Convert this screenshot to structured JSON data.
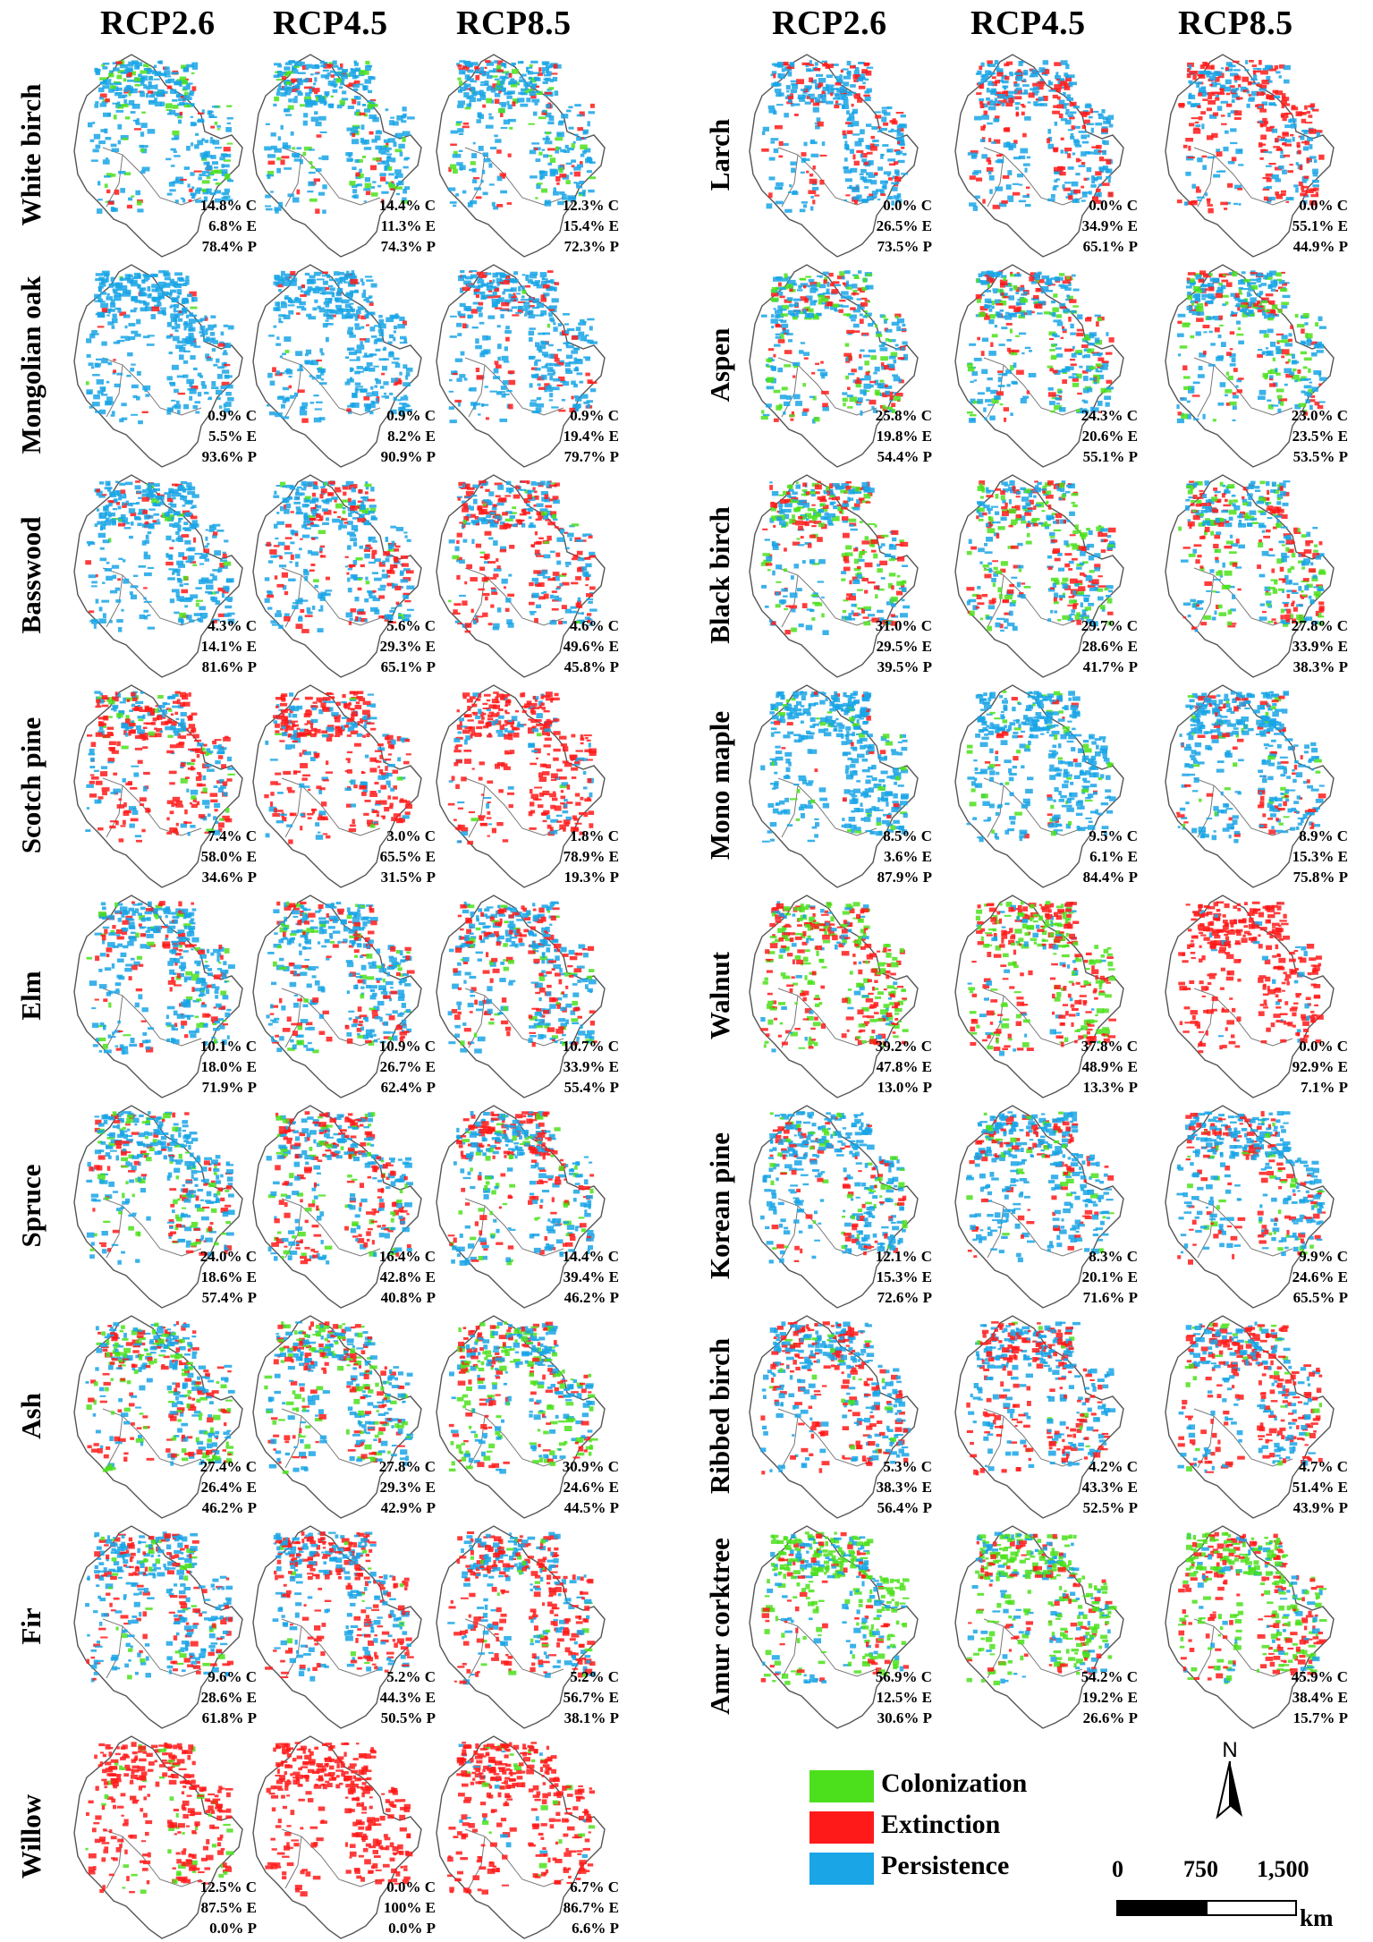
{
  "scenarios": [
    "RCP2.6",
    "RCP4.5",
    "RCP8.5"
  ],
  "stat_suffixes": {
    "colonization": "C",
    "extinction": "E",
    "persistence": "P"
  },
  "colors": {
    "colonization": "#4ce01c",
    "extinction": "#ff1a1a",
    "persistence": "#19a5e6",
    "outline": "#555555"
  },
  "left_species": [
    {
      "name": "White birch",
      "stats": [
        [
          "14.8%",
          "6.8%",
          "78.4%"
        ],
        [
          "14.4%",
          "11.3%",
          "74.3%"
        ],
        [
          "12.3%",
          "15.4%",
          "72.3%"
        ]
      ]
    },
    {
      "name": "Mongolian oak",
      "stats": [
        [
          "0.9%",
          "5.5%",
          "93.6%"
        ],
        [
          "0.9%",
          "8.2%",
          "90.9%"
        ],
        [
          "0.9%",
          "19.4%",
          "79.7%"
        ]
      ]
    },
    {
      "name": "Basswood",
      "stats": [
        [
          "4.3%",
          "14.1%",
          "81.6%"
        ],
        [
          "5.6%",
          "29.3%",
          "65.1%"
        ],
        [
          "4.6%",
          "49.6%",
          "45.8%"
        ]
      ]
    },
    {
      "name": "Scotch pine",
      "stats": [
        [
          "7.4%",
          "58.0%",
          "34.6%"
        ],
        [
          "3.0%",
          "65.5%",
          "31.5%"
        ],
        [
          "1.8%",
          "78.9%",
          "19.3%"
        ]
      ]
    },
    {
      "name": "Elm",
      "stats": [
        [
          "10.1%",
          "18.0%",
          "71.9%"
        ],
        [
          "10.9%",
          "26.7%",
          "62.4%"
        ],
        [
          "10.7%",
          "33.9%",
          "55.4%"
        ]
      ]
    },
    {
      "name": "Spruce",
      "stats": [
        [
          "24.0%",
          "18.6%",
          "57.4%"
        ],
        [
          "16.4%",
          "42.8%",
          "40.8%"
        ],
        [
          "14.4%",
          "39.4%",
          "46.2%"
        ]
      ]
    },
    {
      "name": "Ash",
      "stats": [
        [
          "27.4%",
          "26.4%",
          "46.2%"
        ],
        [
          "27.8%",
          "29.3%",
          "42.9%"
        ],
        [
          "30.9%",
          "24.6%",
          "44.5%"
        ]
      ]
    },
    {
      "name": "Fir",
      "stats": [
        [
          "9.6%",
          "28.6%",
          "61.8%"
        ],
        [
          "5.2%",
          "44.3%",
          "50.5%"
        ],
        [
          "5.2%",
          "56.7%",
          "38.1%"
        ]
      ]
    },
    {
      "name": "Willow",
      "stats": [
        [
          "12.5%",
          "87.5%",
          "0.0%"
        ],
        [
          "0.0%",
          "100%",
          "0.0%"
        ],
        [
          "6.7%",
          "86.7%",
          "6.6%"
        ]
      ]
    }
  ],
  "right_species": [
    {
      "name": "Larch",
      "stats": [
        [
          "0.0%",
          "26.5%",
          "73.5%"
        ],
        [
          "0.0%",
          "34.9%",
          "65.1%"
        ],
        [
          "0.0%",
          "55.1%",
          "44.9%"
        ]
      ]
    },
    {
      "name": "Aspen",
      "stats": [
        [
          "25.8%",
          "19.8%",
          "54.4%"
        ],
        [
          "24.3%",
          "20.6%",
          "55.1%"
        ],
        [
          "23.0%",
          "23.5%",
          "53.5%"
        ]
      ]
    },
    {
      "name": "Black birch",
      "stats": [
        [
          "31.0%",
          "29.5%",
          "39.5%"
        ],
        [
          "29.7%",
          "28.6%",
          "41.7%"
        ],
        [
          "27.8%",
          "33.9%",
          "38.3%"
        ]
      ]
    },
    {
      "name": "Mono maple",
      "stats": [
        [
          "8.5%",
          "3.6%",
          "87.9%"
        ],
        [
          "9.5%",
          "6.1%",
          "84.4%"
        ],
        [
          "8.9%",
          "15.3%",
          "75.8%"
        ]
      ]
    },
    {
      "name": "Walnut",
      "stats": [
        [
          "39.2%",
          "47.8%",
          "13.0%"
        ],
        [
          "37.8%",
          "48.9%",
          "13.3%"
        ],
        [
          "0.0%",
          "92.9%",
          "7.1%"
        ]
      ]
    },
    {
      "name": "Korean pine",
      "stats": [
        [
          "12.1%",
          "15.3%",
          "72.6%"
        ],
        [
          "8.3%",
          "20.1%",
          "71.6%"
        ],
        [
          "9.9%",
          "24.6%",
          "65.5%"
        ]
      ]
    },
    {
      "name": "Ribbed birch",
      "stats": [
        [
          "5.3%",
          "38.3%",
          "56.4%"
        ],
        [
          "4.2%",
          "43.3%",
          "52.5%"
        ],
        [
          "4.7%",
          "51.4%",
          "43.9%"
        ]
      ]
    },
    {
      "name": "Amur corktree",
      "stats": [
        [
          "56.9%",
          "12.5%",
          "30.6%"
        ],
        [
          "54.2%",
          "19.2%",
          "26.6%"
        ],
        [
          "45.9%",
          "38.4%",
          "15.7%"
        ]
      ]
    }
  ],
  "legend": [
    {
      "key": "colonization",
      "label": "Colonization"
    },
    {
      "key": "extinction",
      "label": "Extinction"
    },
    {
      "key": "persistence",
      "label": "Persistence"
    }
  ],
  "north_label": "N",
  "scale_bar": {
    "ticks": [
      "0",
      "750",
      "1,500"
    ],
    "unit": "km"
  }
}
